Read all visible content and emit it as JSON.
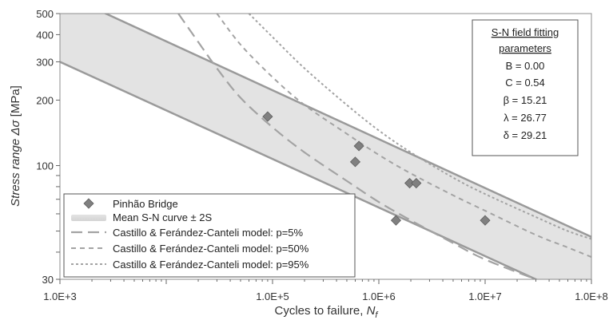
{
  "chart_data": {
    "type": "line",
    "xlabel": "Cycles to failure, ",
    "xlabel_sub": "f",
    "xlabel_n": "N",
    "ylabel_prefix": "Stress range ",
    "ylabel_symbol": "Δσ",
    "ylabel_unit": " [MPa]",
    "xscale": "log",
    "yscale": "log",
    "xlim": [
      1000,
      100000000
    ],
    "ylim": [
      30,
      500
    ],
    "x_ticks": [
      {
        "value": 1000,
        "label": "1.0E+3"
      },
      {
        "value": 100000,
        "label": "1.0E+5"
      },
      {
        "value": 1000000,
        "label": "1.0E+6"
      },
      {
        "value": 10000000,
        "label": "1.0E+7"
      },
      {
        "value": 100000000,
        "label": "1.0E+8"
      }
    ],
    "y_ticks": [
      {
        "value": 30,
        "label": "30"
      },
      {
        "value": 100,
        "label": "100"
      },
      {
        "value": 200,
        "label": "200"
      },
      {
        "value": 300,
        "label": "300"
      },
      {
        "value": 400,
        "label": "400"
      },
      {
        "value": 500,
        "label": "500"
      }
    ],
    "band": {
      "name": "Mean S-N curve ± 2S",
      "upper": [
        [
          2700,
          500
        ],
        [
          100000000,
          47
        ]
      ],
      "lower": [
        [
          1000,
          300
        ],
        [
          30000000,
          30
        ]
      ]
    },
    "series": [
      {
        "name": "Pinhão Bridge",
        "style": "markers",
        "points": [
          [
            90000,
            168
          ],
          [
            600000,
            104
          ],
          [
            650000,
            123
          ],
          [
            1450000,
            56
          ],
          [
            1950000,
            83
          ],
          [
            2250000,
            83
          ],
          [
            10000000,
            56
          ]
        ]
      },
      {
        "name": "Castillo & Ferández-Canteli model: p=5%",
        "style": "long-dash",
        "points": [
          [
            13000,
            500
          ],
          [
            20000,
            370
          ],
          [
            30000,
            280
          ],
          [
            50000,
            205
          ],
          [
            100000,
            150
          ],
          [
            200000,
            115
          ],
          [
            500000,
            85
          ],
          [
            1000000,
            68
          ],
          [
            2000000,
            56
          ],
          [
            5000000,
            44
          ],
          [
            10000000,
            37
          ],
          [
            30000000,
            30
          ]
        ]
      },
      {
        "name": "Castillo & Ferández-Canteli model: p=50%",
        "style": "dash",
        "points": [
          [
            30000,
            500
          ],
          [
            50000,
            360
          ],
          [
            100000,
            255
          ],
          [
            200000,
            190
          ],
          [
            500000,
            140
          ],
          [
            1000000,
            112
          ],
          [
            2000000,
            92
          ],
          [
            5000000,
            73
          ],
          [
            10000000,
            62
          ],
          [
            30000000,
            48
          ],
          [
            60000000,
            42
          ],
          [
            100000000,
            38
          ]
        ]
      },
      {
        "name": "Castillo & Ferández-Canteli model: p=95%",
        "style": "dot",
        "points": [
          [
            60000,
            500
          ],
          [
            100000,
            390
          ],
          [
            200000,
            280
          ],
          [
            500000,
            190
          ],
          [
            1000000,
            145
          ],
          [
            2000000,
            115
          ],
          [
            5000000,
            88
          ],
          [
            10000000,
            74
          ],
          [
            30000000,
            58
          ],
          [
            60000000,
            50
          ],
          [
            100000000,
            46
          ]
        ]
      }
    ],
    "legend": {
      "placement": "bottom-left",
      "entries": [
        "Pinhão Bridge",
        "Mean S-N curve ± 2S",
        "Castillo & Ferández-Canteli model: p=5%",
        "Castillo & Ferández-Canteli model: p=50%",
        "Castillo & Ferández-Canteli model: p=95%"
      ]
    },
    "parameters_box": {
      "placement": "top-right",
      "title_line1": "S-N field fitting",
      "title_line2": "parameters",
      "lines": [
        "B = 0.00",
        "C = 0.54",
        "β = 15.21",
        "λ = 26.77",
        "δ = 29.21"
      ]
    },
    "colors": {
      "band_fill": "#e3e3e3",
      "band_edge": "#9a9a9a",
      "marker": "#808080",
      "marker_edge": "#5e5e5e",
      "curve": "#a3a3a3",
      "frame": "#8c8c8c"
    }
  }
}
